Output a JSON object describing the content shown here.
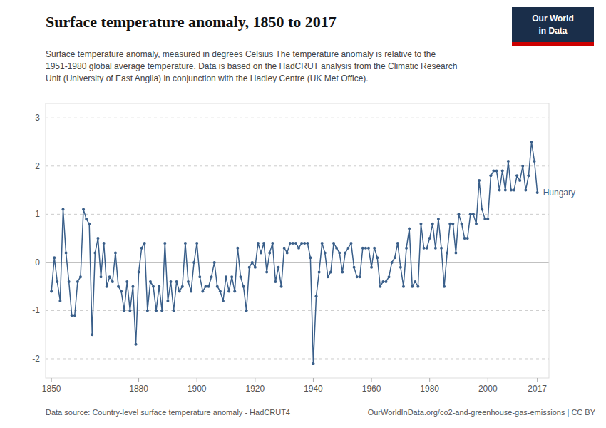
{
  "chart_data": {
    "type": "line",
    "title": "Surface temperature anomaly, 1850 to 2017",
    "subtitle": "Surface temperature anomaly, measured in degrees Celsius The temperature anomaly is relative to the\n1951-1980 global average temperature. Data is based on the HadCRUT analysis from the Climatic Research\nUnit (University of East Anglia) in conjunction with the Hadley Centre (UK Met Office).",
    "footer_left": "Data source: Country-level surface temperature anomaly - HadCRUT4",
    "footer_right": "OurWorldInData.org/co2-and-greenhouse-gas-emissions | CC BY",
    "logo": [
      "Our World",
      "in Data"
    ],
    "grid": true,
    "marker": "circle",
    "xlim": [
      1848,
      2021
    ],
    "xticks": [
      1850,
      1880,
      1900,
      1920,
      1940,
      1960,
      1980,
      2000,
      2017
    ],
    "ylim": [
      -2.4,
      3.3
    ],
    "yticks": [
      -2,
      -1,
      0,
      1,
      2,
      3
    ],
    "x": [
      1850,
      1851,
      1852,
      1853,
      1854,
      1855,
      1856,
      1857,
      1858,
      1859,
      1860,
      1861,
      1862,
      1863,
      1864,
      1865,
      1866,
      1867,
      1868,
      1869,
      1870,
      1871,
      1872,
      1873,
      1874,
      1875,
      1876,
      1877,
      1878,
      1879,
      1880,
      1881,
      1882,
      1883,
      1884,
      1885,
      1886,
      1887,
      1888,
      1889,
      1890,
      1891,
      1892,
      1893,
      1894,
      1895,
      1896,
      1897,
      1898,
      1899,
      1900,
      1901,
      1902,
      1903,
      1904,
      1905,
      1906,
      1907,
      1908,
      1909,
      1910,
      1911,
      1912,
      1913,
      1914,
      1915,
      1916,
      1917,
      1918,
      1919,
      1920,
      1921,
      1922,
      1923,
      1924,
      1925,
      1926,
      1927,
      1928,
      1929,
      1930,
      1931,
      1932,
      1933,
      1934,
      1935,
      1936,
      1937,
      1938,
      1939,
      1940,
      1941,
      1942,
      1943,
      1944,
      1945,
      1946,
      1947,
      1948,
      1949,
      1950,
      1951,
      1952,
      1953,
      1954,
      1955,
      1956,
      1957,
      1958,
      1959,
      1960,
      1961,
      1962,
      1963,
      1964,
      1965,
      1966,
      1967,
      1968,
      1969,
      1970,
      1971,
      1972,
      1973,
      1974,
      1975,
      1976,
      1977,
      1978,
      1979,
      1980,
      1981,
      1982,
      1983,
      1984,
      1985,
      1986,
      1987,
      1988,
      1989,
      1990,
      1991,
      1992,
      1993,
      1994,
      1995,
      1996,
      1997,
      1998,
      1999,
      2000,
      2001,
      2002,
      2003,
      2004,
      2005,
      2006,
      2007,
      2008,
      2009,
      2010,
      2011,
      2012,
      2013,
      2014,
      2015,
      2016,
      2017
    ],
    "series": [
      {
        "name": "Hungary",
        "color": "#3a5f8a",
        "values": [
          -0.6,
          0.1,
          -0.4,
          -0.8,
          1.1,
          0.2,
          -0.4,
          -1.1,
          -1.1,
          -0.4,
          -0.3,
          1.1,
          0.9,
          0.8,
          -1.5,
          0.2,
          0.5,
          -0.3,
          0.4,
          -0.5,
          -0.3,
          -0.4,
          0.2,
          -0.5,
          -0.6,
          -1.0,
          -0.4,
          -1.0,
          -0.5,
          -1.7,
          -0.2,
          0.3,
          0.4,
          -1.0,
          -0.4,
          -0.5,
          -1.0,
          -0.5,
          -1.0,
          0.4,
          -0.8,
          -0.4,
          -1.0,
          -0.4,
          -0.6,
          -0.5,
          0.4,
          -0.4,
          -0.6,
          0.0,
          0.4,
          -0.3,
          -0.6,
          -0.5,
          -0.5,
          -0.3,
          0.0,
          -0.5,
          -0.6,
          -0.8,
          -0.3,
          -0.6,
          -0.3,
          -0.6,
          0.3,
          -0.3,
          -0.5,
          -1.0,
          -0.1,
          0.0,
          -0.1,
          0.4,
          0.2,
          0.4,
          -0.2,
          0.2,
          0.4,
          -0.4,
          -0.1,
          -0.5,
          0.3,
          0.2,
          0.4,
          0.4,
          0.4,
          0.3,
          0.4,
          0.4,
          0.4,
          0.1,
          -2.1,
          -0.7,
          -0.2,
          0.4,
          0.2,
          -0.3,
          -0.2,
          0.4,
          0.3,
          0.2,
          -0.2,
          0.2,
          0.3,
          0.4,
          -0.1,
          -0.3,
          -0.3,
          0.3,
          0.3,
          0.3,
          -0.1,
          0.3,
          0.1,
          -0.5,
          -0.4,
          -0.4,
          -0.3,
          0.0,
          0.1,
          0.4,
          -0.1,
          -0.5,
          0.3,
          0.7,
          -0.5,
          -0.4,
          -0.5,
          0.8,
          0.3,
          0.3,
          0.5,
          0.8,
          0.3,
          0.9,
          0.3,
          -0.5,
          0.2,
          0.8,
          0.8,
          0.2,
          1.0,
          0.8,
          0.5,
          0.5,
          1.0,
          1.0,
          0.8,
          1.7,
          1.1,
          0.9,
          0.9,
          1.8,
          1.9,
          1.9,
          1.5,
          1.9,
          1.5,
          2.1,
          1.5,
          1.5,
          1.8,
          1.7,
          2.0,
          1.5,
          1.8,
          2.5,
          2.1,
          1.45
        ]
      }
    ]
  }
}
